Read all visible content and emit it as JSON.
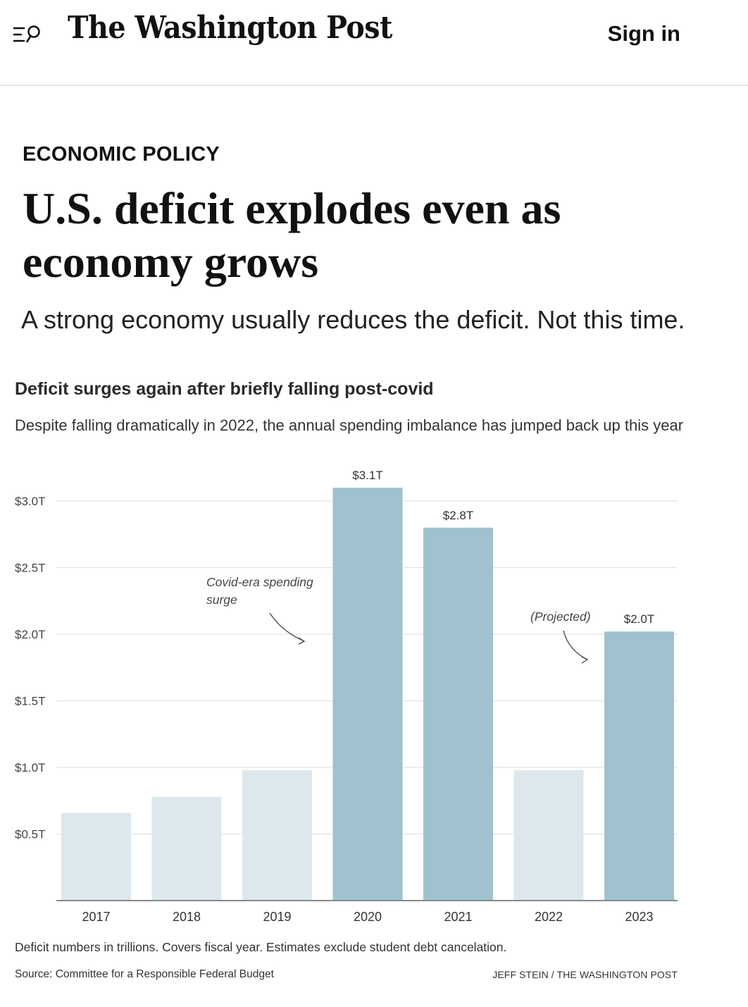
{
  "header": {
    "logo_text": "The Washington Post",
    "signin_label": "Sign in",
    "menu_icon": "menu-search-icon"
  },
  "article": {
    "kicker": "ECONOMIC POLICY",
    "headline": "U.S. deficit explodes even as economy grows",
    "dek": "A strong economy usually reduces the deficit. Not this time."
  },
  "chart_data": {
    "type": "bar",
    "title": "Deficit surges again after briefly falling post-covid",
    "subtitle": "Despite falling dramatically in 2022, the annual spending imbalance has jumped back up this year",
    "categories": [
      "2017",
      "2018",
      "2019",
      "2020",
      "2021",
      "2022",
      "2023"
    ],
    "values": [
      0.66,
      0.78,
      0.98,
      3.1,
      2.8,
      0.98,
      2.02
    ],
    "data_labels": [
      "",
      "",
      "",
      "$3.1T",
      "$2.8T",
      "",
      "$2.0T"
    ],
    "highlighted": [
      false,
      false,
      false,
      true,
      true,
      false,
      true
    ],
    "ylim": [
      0,
      3.1
    ],
    "yticks": [
      0.5,
      1.0,
      1.5,
      2.0,
      2.5,
      3.0
    ],
    "ytick_labels": [
      "$0.5T",
      "$1.0T",
      "$1.5T",
      "$2.0T",
      "$2.5T",
      "$3.0T"
    ],
    "xlabel": "",
    "ylabel": "",
    "grid": true,
    "colors": {
      "highlight": "#a0c2ce",
      "muted": "#dde8ee",
      "grid": "#e3e3e3",
      "axis": "#8a8a8a"
    },
    "annotations": [
      {
        "text": "Covid-era spending surge",
        "points_to": "2020"
      },
      {
        "text": "(Projected)",
        "points_to": "2023"
      }
    ],
    "note": "Deficit numbers in trillions. Covers fiscal year. Estimates exclude student debt cancelation.",
    "source": "Source: Committee for a Responsible Federal Budget",
    "credit": "JEFF STEIN / THE WASHINGTON POST"
  }
}
